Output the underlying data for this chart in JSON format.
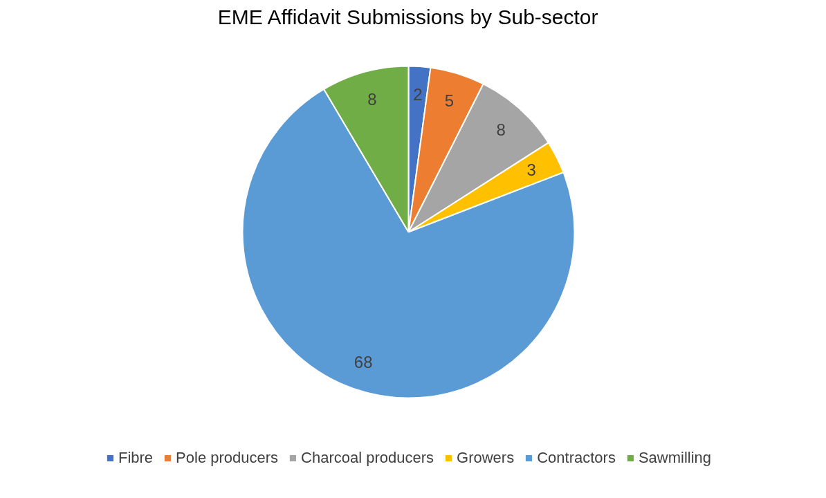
{
  "chart_data": {
    "type": "pie",
    "title": "EME Affidavit Submissions by Sub-sector",
    "categories": [
      "Fibre",
      "Pole producers",
      "Charcoal producers",
      "Growers",
      "Contractors",
      "Sawmilling"
    ],
    "values": [
      2,
      5,
      8,
      3,
      68,
      8
    ],
    "colors": [
      "#4472c4",
      "#ed7d31",
      "#a5a5a5",
      "#ffc000",
      "#5b9bd5",
      "#70ad47"
    ],
    "data_labels": true,
    "legend": "bottom"
  }
}
